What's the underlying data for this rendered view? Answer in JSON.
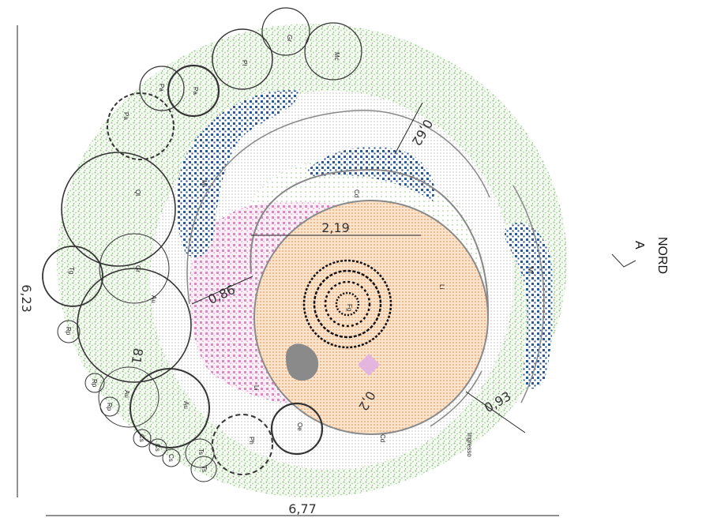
{
  "dimensions": {
    "total_height": "6,23",
    "total_width": "6,77",
    "inner_diameter": "2,19",
    "path_width": "0,86",
    "entrance_width": "0,93",
    "top_offset": "0,62",
    "small_offset": "0,2"
  },
  "north": {
    "word": "NORD",
    "letter": "A"
  },
  "labels": {
    "entrance": "Ingresso",
    "cd_top": "Cd",
    "cd_bottom": "Cd",
    "li_right": "Li",
    "li_left": "Li",
    "fg": "Fg",
    "mi_left": "Mi",
    "mi_right": "Mi",
    "gr_top": "Gr",
    "mc": "Mc",
    "pl": "Pl",
    "pa_1": "Pa",
    "pa_2": "Pa",
    "pa_3": "Pa",
    "ql": "Ql",
    "gr_left": "Gr",
    "tg": "Tg",
    "au_1": "Au",
    "au_2": "Au",
    "au_3": "Au",
    "rp_1": "Rp",
    "rp_2": "Rp",
    "rp_3": "Rp",
    "cs_1": "Cs",
    "cs_2": "Cs",
    "cs_3": "Cs",
    "ts_1": "Ts",
    "ts_2": "Ts",
    "ph": "Ph",
    "oe": "Oe",
    "n81": "81"
  },
  "colors": {
    "lawn": "#9cc98f",
    "gravel": "#c9c9c9",
    "blue_hatch": "#1f4e8c",
    "pink_hatch": "#d98ac0",
    "orange_center": "#e89a5a",
    "rock": "#8a8a8a",
    "lilac": "#e4b6df"
  }
}
